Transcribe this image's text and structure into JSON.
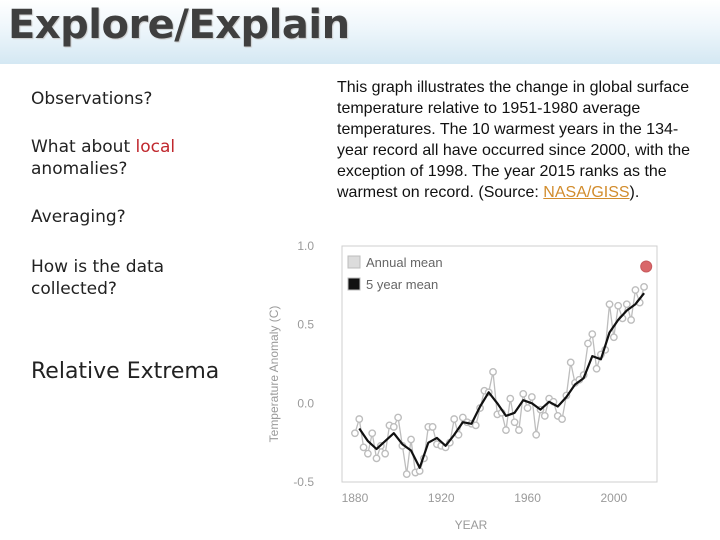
{
  "slide": {
    "title": "Explore/Explain",
    "bullets": [
      {
        "pre": "Observations?",
        "highlight": "",
        "post": ""
      },
      {
        "pre": "What about ",
        "highlight": "local",
        "post": " anomalies?"
      },
      {
        "pre": "Averaging?",
        "highlight": "",
        "post": ""
      },
      {
        "pre": "How is the data collected?",
        "highlight": "",
        "post": ""
      },
      {
        "pre": "Relative Extrema",
        "highlight": "",
        "post": ""
      }
    ],
    "description": {
      "text": "This graph illustrates the change in global surface temperature relative to 1951-1980 average temperatures. The 10 warmest years in the 134-year record all have occurred since 2000, with the exception of 1998. The year 2015 ranks as the warmest on record. (Source: ",
      "source_link": "NASA/GISS",
      "tail": ")."
    },
    "colors": {
      "highlight": "#c0272d",
      "link": "#d28c2c",
      "annual": "#bdbdbd",
      "mean": "#111111",
      "record": "#d9676a"
    }
  },
  "chart_data": {
    "type": "line",
    "title": "",
    "xlabel": "YEAR",
    "ylabel": "Temperature Anomaly (C)",
    "xlim": [
      1874,
      2020
    ],
    "ylim": [
      -0.5,
      1.0
    ],
    "xticks": [
      "1880",
      "1920",
      "1960",
      "2000"
    ],
    "yticks": [
      "1.0",
      "0.5",
      "0.0",
      "-0.5"
    ],
    "legend": {
      "position": "top-left",
      "entries": [
        "Annual mean",
        "5 year mean"
      ]
    },
    "grid": false,
    "record_point": {
      "x": 2015,
      "y": 0.87
    },
    "series": [
      {
        "name": "Annual mean",
        "marker": "circle",
        "x": [
          1880,
          1882,
          1884,
          1886,
          1888,
          1890,
          1892,
          1894,
          1896,
          1898,
          1900,
          1902,
          1904,
          1906,
          1908,
          1910,
          1912,
          1914,
          1916,
          1918,
          1920,
          1922,
          1924,
          1926,
          1928,
          1930,
          1932,
          1934,
          1936,
          1938,
          1940,
          1942,
          1944,
          1946,
          1948,
          1950,
          1952,
          1954,
          1956,
          1958,
          1960,
          1962,
          1964,
          1966,
          1968,
          1970,
          1972,
          1974,
          1976,
          1978,
          1980,
          1982,
          1984,
          1986,
          1988,
          1990,
          1992,
          1994,
          1996,
          1998,
          2000,
          2002,
          2004,
          2006,
          2008,
          2010,
          2012,
          2014
        ],
        "y": [
          -0.19,
          -0.1,
          -0.28,
          -0.32,
          -0.19,
          -0.35,
          -0.27,
          -0.32,
          -0.14,
          -0.15,
          -0.09,
          -0.27,
          -0.45,
          -0.23,
          -0.44,
          -0.43,
          -0.35,
          -0.15,
          -0.15,
          -0.26,
          -0.27,
          -0.28,
          -0.25,
          -0.1,
          -0.2,
          -0.09,
          -0.12,
          -0.13,
          -0.14,
          -0.03,
          0.08,
          0.07,
          0.2,
          -0.07,
          -0.06,
          -0.17,
          0.03,
          -0.12,
          -0.17,
          0.06,
          -0.03,
          0.04,
          -0.2,
          -0.04,
          -0.08,
          0.03,
          0.01,
          -0.08,
          -0.1,
          0.05,
          0.26,
          0.13,
          0.15,
          0.18,
          0.38,
          0.44,
          0.22,
          0.31,
          0.34,
          0.63,
          0.42,
          0.62,
          0.54,
          0.63,
          0.53,
          0.72,
          0.64,
          0.74
        ]
      },
      {
        "name": "5 year mean",
        "marker": "none",
        "x": [
          1882,
          1886,
          1890,
          1894,
          1898,
          1902,
          1906,
          1910,
          1914,
          1918,
          1922,
          1926,
          1930,
          1934,
          1938,
          1942,
          1946,
          1950,
          1954,
          1958,
          1962,
          1966,
          1970,
          1974,
          1978,
          1982,
          1986,
          1990,
          1994,
          1998,
          2002,
          2006,
          2010,
          2014
        ],
        "y": [
          -0.16,
          -0.24,
          -0.29,
          -0.24,
          -0.19,
          -0.26,
          -0.3,
          -0.41,
          -0.25,
          -0.22,
          -0.27,
          -0.2,
          -0.12,
          -0.13,
          -0.02,
          0.07,
          0.0,
          -0.08,
          -0.06,
          0.02,
          0.0,
          -0.04,
          0.01,
          -0.02,
          0.04,
          0.12,
          0.16,
          0.3,
          0.28,
          0.45,
          0.53,
          0.59,
          0.63,
          0.7
        ]
      }
    ]
  }
}
